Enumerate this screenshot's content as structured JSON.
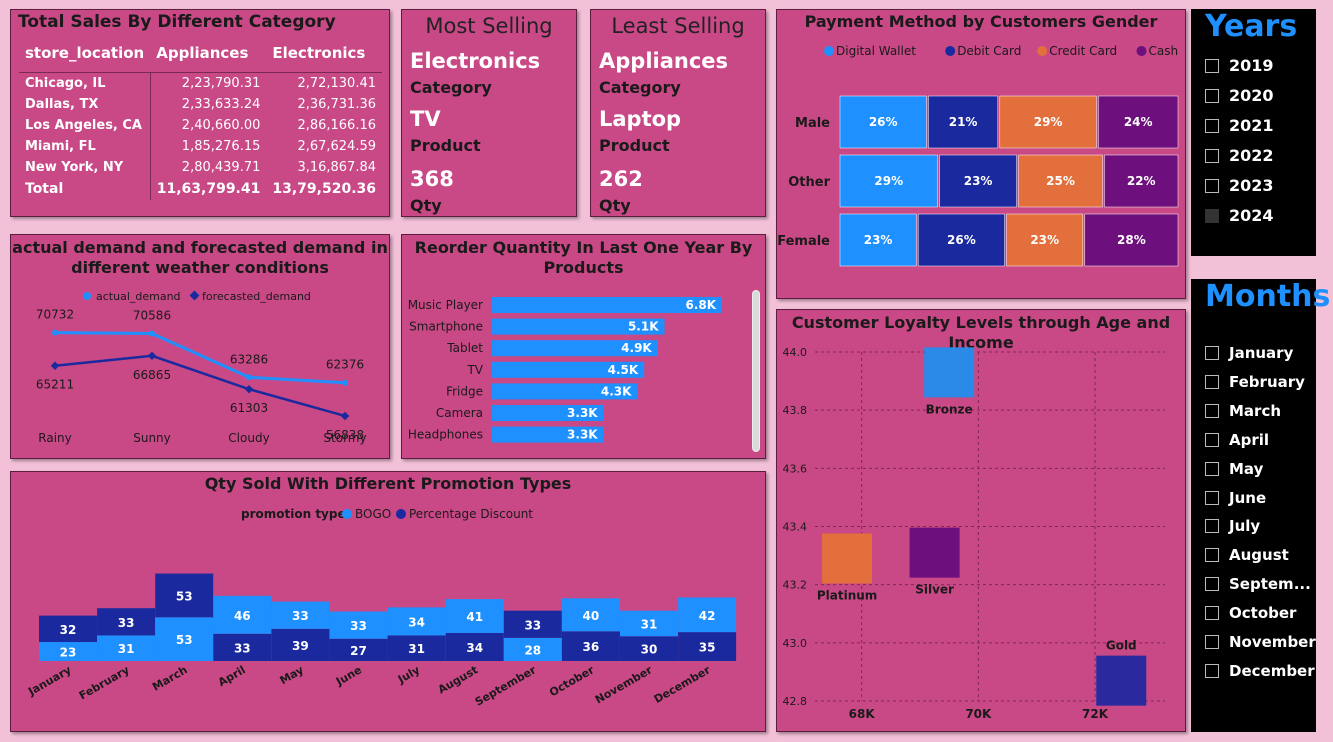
{
  "colors": {
    "light_blue": "#1e90ff",
    "dark_blue": "#1a2a9e",
    "orange": "#e3703c",
    "purple": "#6e0f7e",
    "lavender": "#2a2a9e",
    "bronze": "#2b8ae8",
    "platinum": "#e3703c",
    "silver": "#6e0f7e",
    "gold": "#2a2a9e"
  },
  "sales": {
    "title": "Total Sales By Different Category",
    "headers": [
      "store_location",
      "Appliances",
      "Electronics"
    ],
    "rows": [
      [
        "Chicago, IL",
        "2,23,790.31",
        "2,72,130.41"
      ],
      [
        "Dallas, TX",
        "2,33,633.24",
        "2,36,731.36"
      ],
      [
        "Los Angeles, CA",
        "2,40,660.00",
        "2,86,166.16"
      ],
      [
        "Miami, FL",
        "1,85,276.15",
        "2,67,624.59"
      ],
      [
        "New York, NY",
        "2,80,439.71",
        "3,16,867.84"
      ]
    ],
    "total": [
      "Total",
      "11,63,799.41",
      "13,79,520.36"
    ]
  },
  "most": {
    "title": "Most Selling",
    "category": "Electronics",
    "category_label": "Category",
    "product": "TV",
    "product_label": "Product",
    "qty": "368",
    "qty_label": "Qty"
  },
  "least": {
    "title": "Least Selling",
    "category": "Appliances",
    "category_label": "Category",
    "product": "Laptop",
    "product_label": "Product",
    "qty": "262",
    "qty_label": "Qty"
  },
  "payment": {
    "title": "Payment Method by Customers Gender",
    "legend": [
      "Digital Wallet",
      "Debit Card",
      "Credit Card",
      "Cash"
    ],
    "rows": [
      {
        "label": "Male",
        "values": [
          26,
          21,
          29,
          24
        ]
      },
      {
        "label": "Other",
        "values": [
          29,
          23,
          25,
          22
        ]
      },
      {
        "label": "Female",
        "values": [
          23,
          26,
          23,
          28
        ]
      }
    ]
  },
  "demand": {
    "title_line1": "actual demand and forecasted demand in",
    "title_line2": "different weather conditions",
    "legend": [
      "actual_demand",
      "forecasted_demand"
    ],
    "categories": [
      "Rainy",
      "Sunny",
      "Cloudy",
      "Stormy"
    ],
    "actual": [
      70732,
      70586,
      63286,
      62376
    ],
    "forecast": [
      65211,
      66865,
      61303,
      56838
    ]
  },
  "reorder": {
    "title_line1": "Reorder Quantity In Last One Year By",
    "title_line2": "Products",
    "items": [
      {
        "label": "Music Player",
        "value": 6.8,
        "text": "6.8K"
      },
      {
        "label": "Smartphone",
        "value": 5.1,
        "text": "5.1K"
      },
      {
        "label": "Tablet",
        "value": 4.9,
        "text": "4.9K"
      },
      {
        "label": "TV",
        "value": 4.5,
        "text": "4.5K"
      },
      {
        "label": "Fridge",
        "value": 4.3,
        "text": "4.3K"
      },
      {
        "label": "Camera",
        "value": 3.3,
        "text": "3.3K"
      },
      {
        "label": "Headphones",
        "value": 3.3,
        "text": "3.3K"
      }
    ]
  },
  "promo": {
    "title": "Qty Sold With Different Promotion Types",
    "legend_title": "promotion type",
    "legend": [
      "BOGO",
      "Percentage Discount"
    ],
    "months": [
      "January",
      "February",
      "March",
      "April",
      "May",
      "June",
      "July",
      "August",
      "September",
      "October",
      "November",
      "December"
    ],
    "bogo": [
      23,
      31,
      53,
      46,
      33,
      33,
      34,
      41,
      28,
      40,
      31,
      42
    ],
    "pct": [
      32,
      33,
      53,
      33,
      39,
      27,
      31,
      34,
      33,
      36,
      30,
      35
    ],
    "bottom_is_bogo": [
      true,
      true,
      true,
      false,
      false,
      false,
      false,
      false,
      true,
      false,
      false,
      false
    ]
  },
  "loyalty": {
    "title": "Customer Loyalty Levels through Age and Income",
    "yticks": [
      "44.0",
      "43.8",
      "43.6",
      "43.4",
      "43.2",
      "43.0",
      "42.8"
    ],
    "xticks": [
      "68K",
      "70K",
      "72K"
    ],
    "points": [
      {
        "label": "Bronze",
        "x": 69.5,
        "y": 43.93
      },
      {
        "label": "Platinum",
        "x": 67.75,
        "y": 43.29
      },
      {
        "label": "Silver",
        "x": 69.25,
        "y": 43.31
      },
      {
        "label": "Gold",
        "x": 72.45,
        "y": 42.87
      }
    ]
  },
  "years": {
    "title": "Years",
    "items": [
      "2019",
      "2020",
      "2021",
      "2022",
      "2023",
      "2024"
    ],
    "selected": "2024"
  },
  "months": {
    "title": "Months",
    "items": [
      "January",
      "February",
      "March",
      "April",
      "May",
      "June",
      "July",
      "August",
      "Septem...",
      "October",
      "November",
      "December"
    ]
  }
}
